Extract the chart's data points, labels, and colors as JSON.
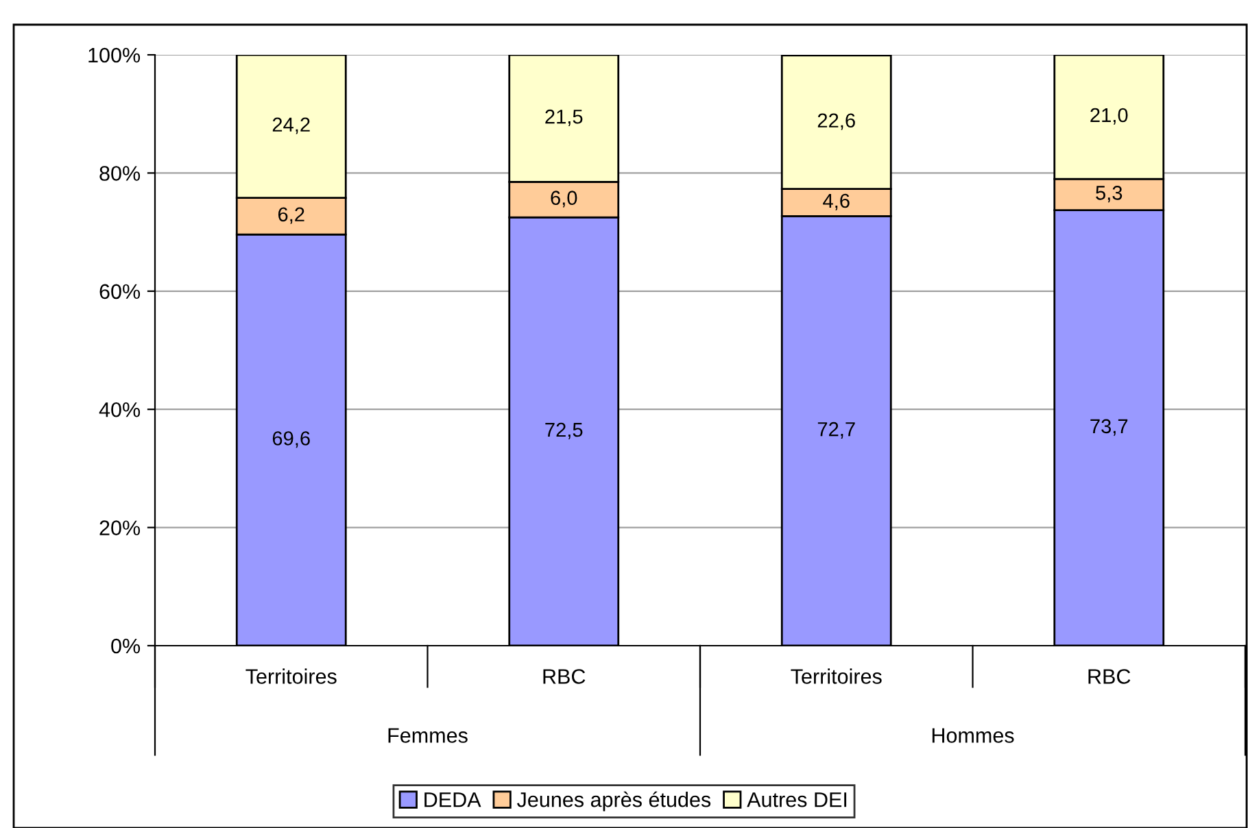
{
  "chart_data": {
    "type": "bar",
    "stacked": true,
    "categories": [
      "Territoires",
      "RBC",
      "Territoires",
      "RBC"
    ],
    "series": [
      {
        "name": "DEDA",
        "color": "#9999ff",
        "values": [
          69.6,
          72.5,
          72.7,
          73.7
        ],
        "value_labels": [
          "69,6",
          "72,5",
          "72,7",
          "73,7"
        ]
      },
      {
        "name": "Jeunes après études",
        "color": "#ffcc99",
        "values": [
          6.2,
          6.0,
          4.6,
          5.3
        ],
        "value_labels": [
          "6,2",
          "6,0",
          "4,6",
          "5,3"
        ]
      },
      {
        "name": "Autres DEI",
        "color": "#ffffcc",
        "values": [
          24.2,
          21.5,
          22.6,
          21.0
        ],
        "value_labels": [
          "24,2",
          "21,5",
          "22,6",
          "21,0"
        ]
      }
    ],
    "annotations": [
      "Femmes",
      "Hommes"
    ],
    "ylim": [
      0,
      100
    ],
    "yticks": [
      {
        "value": 0,
        "label": "0%"
      },
      {
        "value": 20,
        "label": "20%"
      },
      {
        "value": 40,
        "label": "40%"
      },
      {
        "value": 60,
        "label": "60%"
      },
      {
        "value": 80,
        "label": "80%"
      },
      {
        "value": 100,
        "label": "100%"
      }
    ],
    "grid": "y",
    "legend": "bottom"
  }
}
